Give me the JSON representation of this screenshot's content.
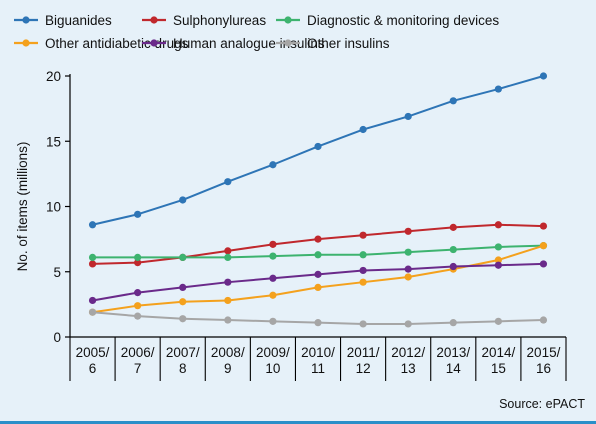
{
  "chart_data": {
    "type": "line",
    "xlabel": "",
    "ylabel": "No. of items (millions)",
    "ylim": [
      0,
      20
    ],
    "yticks": [
      "0",
      "5",
      "10",
      "15",
      "20"
    ],
    "grid": false,
    "legend_position": "top",
    "categories": [
      [
        "2005/",
        "6"
      ],
      [
        "2006/",
        "7"
      ],
      [
        "2007/",
        "8"
      ],
      [
        "2008/",
        "9"
      ],
      [
        "2009/",
        "10"
      ],
      [
        "2010/",
        "11"
      ],
      [
        "2011/",
        "12"
      ],
      [
        "2012/",
        "13"
      ],
      [
        "2013/",
        "14"
      ],
      [
        "2014/",
        "15"
      ],
      [
        "2015/",
        "16"
      ]
    ],
    "series": [
      {
        "name": "Biguanides",
        "color": "#2e75b6",
        "values": [
          8.6,
          9.4,
          10.5,
          11.9,
          13.2,
          14.6,
          15.9,
          16.9,
          18.1,
          19.0,
          20.0
        ]
      },
      {
        "name": "Sulphonylureas",
        "color": "#c0282d",
        "values": [
          5.6,
          5.7,
          6.1,
          6.6,
          7.1,
          7.5,
          7.8,
          8.1,
          8.4,
          8.6,
          8.5
        ]
      },
      {
        "name": "Diagnostic & monitoring devices",
        "color": "#3db36f",
        "values": [
          6.1,
          6.1,
          6.1,
          6.1,
          6.2,
          6.3,
          6.3,
          6.5,
          6.7,
          6.9,
          7.0
        ]
      },
      {
        "name": "Other antidiabetic drugs",
        "color": "#f4a11d",
        "values": [
          1.9,
          2.4,
          2.7,
          2.8,
          3.2,
          3.8,
          4.2,
          4.6,
          5.2,
          5.9,
          7.0
        ]
      },
      {
        "name": "Human analogue insulins",
        "color": "#6a2a8a",
        "values": [
          2.8,
          3.4,
          3.8,
          4.2,
          4.5,
          4.8,
          5.1,
          5.2,
          5.4,
          5.5,
          5.6
        ]
      },
      {
        "name": "Other insulins",
        "color": "#a6a6a6",
        "values": [
          1.9,
          1.6,
          1.4,
          1.3,
          1.2,
          1.1,
          1.0,
          1.0,
          1.1,
          1.2,
          1.3
        ]
      }
    ],
    "source": "Source: ePACT"
  }
}
